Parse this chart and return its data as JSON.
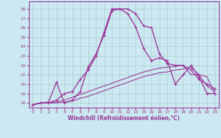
{
  "xlabel": "Windchill (Refroidissement éolien,°C)",
  "xlim": [
    -0.5,
    23.5
  ],
  "ylim": [
    17.5,
    28.8
  ],
  "yticks": [
    18,
    19,
    20,
    21,
    22,
    23,
    24,
    25,
    26,
    27,
    28
  ],
  "xticks": [
    0,
    1,
    2,
    3,
    4,
    5,
    6,
    7,
    8,
    9,
    10,
    11,
    12,
    13,
    14,
    15,
    16,
    17,
    18,
    19,
    20,
    21,
    22,
    23
  ],
  "bg_color": "#cce8f0",
  "grid_color": "#aacccc",
  "line_color": "#993399",
  "lines": [
    {
      "x": [
        0,
        1,
        2,
        3,
        4,
        5,
        6,
        7,
        8,
        9,
        10,
        11,
        12,
        13,
        14,
        15,
        16,
        17,
        18,
        19,
        20,
        21,
        22,
        23
      ],
      "y": [
        17.8,
        18.0,
        18.1,
        20.2,
        18.0,
        18.3,
        19.2,
        21.8,
        23.2,
        25.2,
        27.8,
        28.0,
        27.5,
        26.1,
        23.8,
        22.5,
        22.8,
        22.5,
        20.0,
        21.0,
        22.0,
        20.8,
        19.0,
        19.0
      ],
      "marker": true,
      "lw": 1.0
    },
    {
      "x": [
        0,
        1,
        2,
        3,
        4,
        5,
        6,
        7,
        8,
        9,
        10,
        11,
        12,
        13,
        14,
        15,
        16,
        17,
        18,
        19,
        20,
        21,
        22,
        23
      ],
      "y": [
        17.8,
        18.0,
        18.0,
        18.3,
        19.0,
        19.2,
        20.5,
        21.5,
        23.0,
        25.5,
        28.0,
        28.0,
        28.0,
        27.5,
        26.2,
        26.0,
        23.2,
        22.2,
        22.0,
        22.0,
        21.5,
        20.5,
        20.0,
        19.5
      ],
      "marker": true,
      "lw": 1.0
    },
    {
      "x": [
        0,
        1,
        2,
        3,
        4,
        5,
        6,
        7,
        8,
        9,
        10,
        11,
        12,
        13,
        14,
        15,
        16,
        17,
        18,
        19,
        20,
        21,
        22,
        23
      ],
      "y": [
        17.8,
        18.0,
        18.0,
        18.0,
        18.1,
        18.2,
        18.5,
        18.7,
        19.0,
        19.3,
        19.6,
        19.9,
        20.2,
        20.5,
        20.8,
        21.0,
        21.2,
        21.3,
        21.5,
        21.6,
        21.8,
        21.0,
        19.8,
        19.2
      ],
      "marker": false,
      "lw": 0.8
    },
    {
      "x": [
        0,
        1,
        2,
        3,
        4,
        5,
        6,
        7,
        8,
        9,
        10,
        11,
        12,
        13,
        14,
        15,
        16,
        17,
        18,
        19,
        20,
        21,
        22,
        23
      ],
      "y": [
        17.8,
        18.0,
        18.0,
        18.1,
        18.3,
        18.6,
        18.9,
        19.2,
        19.5,
        19.8,
        20.1,
        20.4,
        20.7,
        21.0,
        21.3,
        21.5,
        21.7,
        21.8,
        21.9,
        22.0,
        21.0,
        21.0,
        20.8,
        19.0
      ],
      "marker": false,
      "lw": 0.8
    }
  ]
}
